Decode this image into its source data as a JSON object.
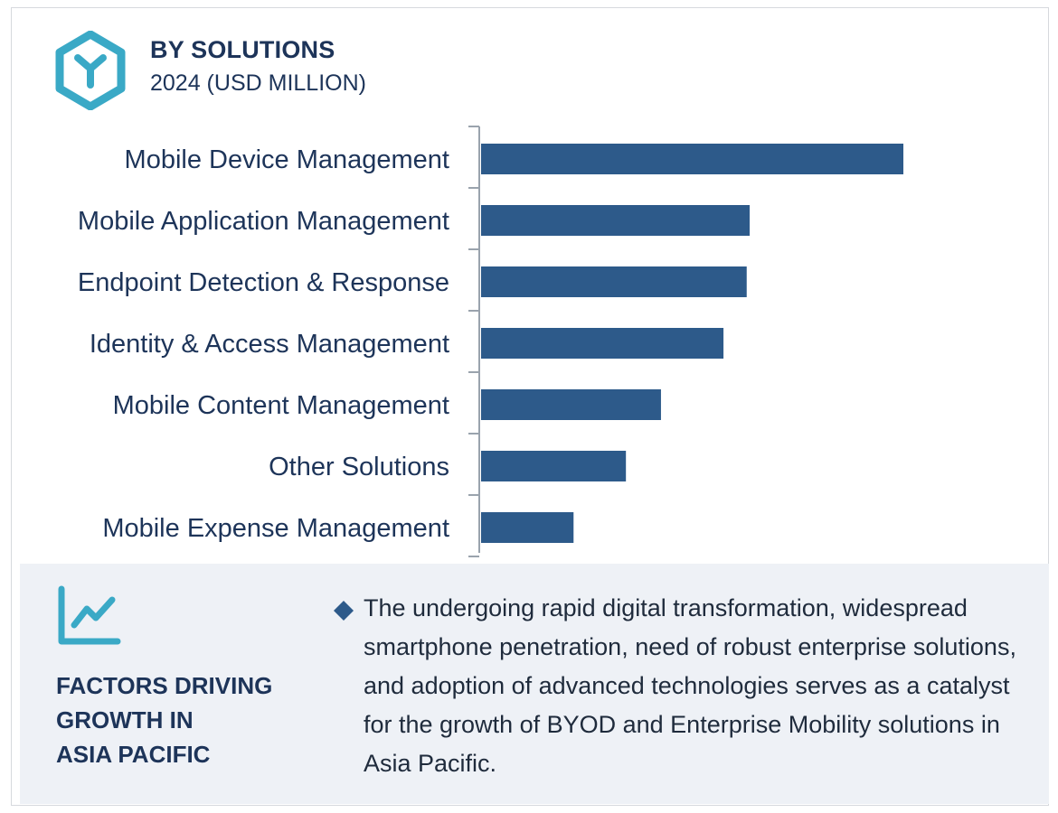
{
  "header": {
    "title": "BY SOLUTIONS",
    "subtitle": "2024 (USD MILLION)",
    "logo_icon": "hexagon-y-icon"
  },
  "colors": {
    "bar": "#2d5a8a",
    "axis": "#9aa3ad",
    "text": "#1d3459",
    "accent": "#3aa9c6",
    "panel_bg": "#eef1f6"
  },
  "chart_data": {
    "type": "bar",
    "orientation": "horizontal",
    "title": "BY SOLUTIONS",
    "subtitle": "2024 (USD MILLION)",
    "categories": [
      "Mobile Device Management",
      "Mobile Application Management",
      "Endpoint Detection & Response",
      "Identity & Access Management",
      "Mobile Content Management",
      "Other Solutions",
      "Mobile Expense Management"
    ],
    "values": [
      100,
      63.6,
      62.9,
      57.4,
      42.6,
      34.3,
      21.9
    ],
    "xlabel": "",
    "ylabel": "",
    "xlim": [
      0,
      100
    ],
    "grid": false,
    "legend": "none"
  },
  "panel": {
    "icon": "trend-chart-icon",
    "title": "FACTORS DRIVING\nGROWTH IN\nASIA PACIFIC",
    "bullet_icon": "diamond-bullet-icon",
    "text": "The undergoing rapid digital transformation, widespread smartphone penetration, need of robust enterprise solutions, and adoption of advanced technologies serves as a catalyst for the growth of BYOD and Enterprise Mobility solutions in Asia Pacific."
  }
}
